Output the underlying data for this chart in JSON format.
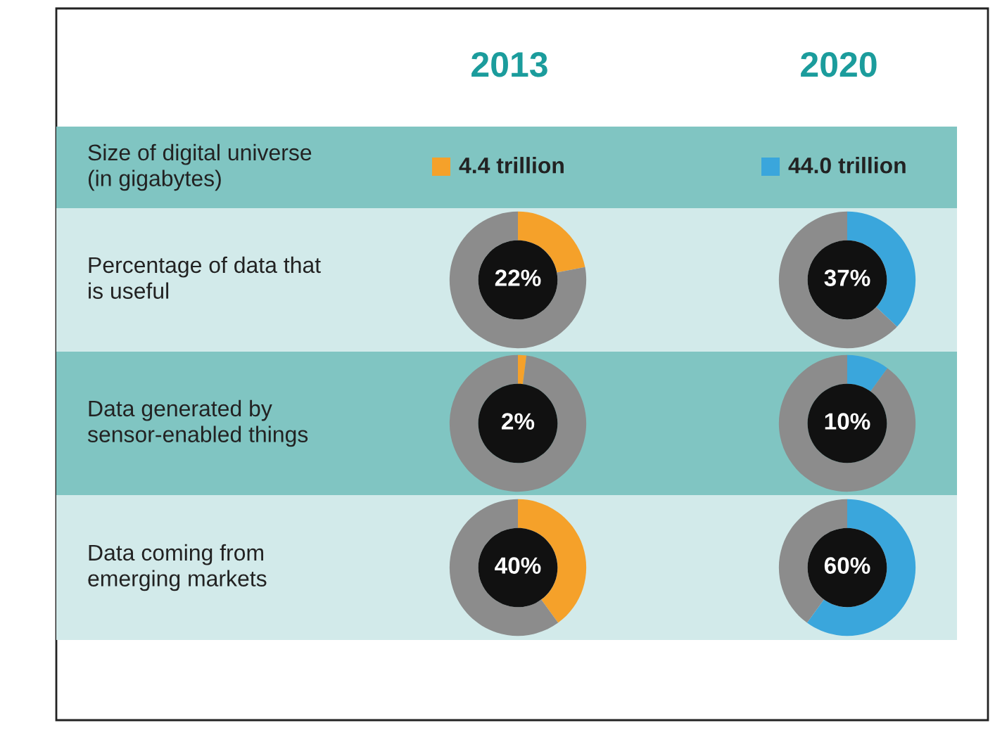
{
  "chart_data": [
    {
      "type": "other",
      "categories": [
        "2013",
        "2020"
      ],
      "annotations": [
        "Size of digital universe\n(in gigabytes)",
        "Percentage of data that\nis useful",
        "Data generated by\nsensor-enabled things",
        "Data coming from\nemerging markets",
        "4.4 trillion",
        "44.0 trillion"
      ],
      "colors": [
        "#f5a12a",
        "#3aa6dc"
      ]
    },
    {
      "type": "donut",
      "categories": [
        null,
        null
      ],
      "values": [
        22,
        78
      ],
      "colors": [
        "#f5a12a",
        "#8c8c8c"
      ],
      "value_labels": [
        "22%",
        null
      ]
    },
    {
      "type": "donut",
      "categories": [
        null,
        null
      ],
      "values": [
        37,
        63
      ],
      "colors": [
        "#3aa6dc",
        "#8c8c8c"
      ],
      "value_labels": [
        "37%",
        null
      ]
    },
    {
      "type": "donut",
      "categories": [
        null,
        null
      ],
      "values": [
        2,
        98
      ],
      "colors": [
        "#f5a12a",
        "#8c8c8c"
      ],
      "value_labels": [
        "2%",
        null
      ]
    },
    {
      "type": "donut",
      "categories": [
        null,
        null
      ],
      "values": [
        10,
        90
      ],
      "colors": [
        "#3aa6dc",
        "#8c8c8c"
      ],
      "value_labels": [
        "10%",
        null
      ]
    },
    {
      "type": "donut",
      "categories": [
        null,
        null
      ],
      "values": [
        40,
        60
      ],
      "colors": [
        "#f5a12a",
        "#8c8c8c"
      ],
      "value_labels": [
        "40%",
        null
      ]
    },
    {
      "type": "donut",
      "categories": [
        null,
        null
      ],
      "values": [
        60,
        40
      ],
      "colors": [
        "#3aa6dc",
        "#8c8c8c"
      ],
      "value_labels": [
        "60%",
        null
      ]
    }
  ]
}
